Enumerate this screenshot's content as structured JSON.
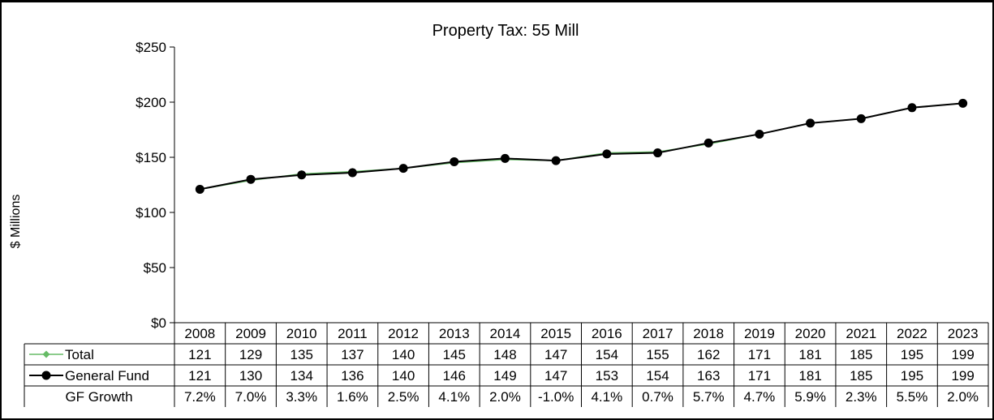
{
  "chart_data": {
    "type": "line",
    "title": "Property Tax: 55 Mill",
    "ylabel": "$ Millions",
    "xlabel": "",
    "ylim": [
      0,
      250
    ],
    "ytick_labels": [
      "$0",
      "$50",
      "$100",
      "$150",
      "$200",
      "$250"
    ],
    "ytick_values": [
      0,
      50,
      100,
      150,
      200,
      250
    ],
    "grid": false,
    "legend_placement": "data-table",
    "categories": [
      "2008",
      "2009",
      "2010",
      "2011",
      "2012",
      "2013",
      "2014",
      "2015",
      "2016",
      "2017",
      "2018",
      "2019",
      "2020",
      "2021",
      "2022",
      "2023"
    ],
    "series": [
      {
        "name": "Total",
        "color": "#66bb66",
        "marker": "diamond",
        "values": [
          121,
          129,
          135,
          137,
          140,
          145,
          148,
          147,
          154,
          155,
          162,
          171,
          181,
          185,
          195,
          199
        ]
      },
      {
        "name": "General Fund",
        "color": "#000000",
        "marker": "circle",
        "values": [
          121,
          130,
          134,
          136,
          140,
          146,
          149,
          147,
          153,
          154,
          163,
          171,
          181,
          185,
          195,
          199
        ]
      }
    ],
    "table_extra_row": {
      "name": "GF Growth",
      "values": [
        "7.2%",
        "7.0%",
        "3.3%",
        "1.6%",
        "2.5%",
        "4.1%",
        "2.0%",
        "-1.0%",
        "4.1%",
        "0.7%",
        "5.7%",
        "4.7%",
        "5.9%",
        "2.3%",
        "5.5%",
        "2.0%"
      ]
    }
  }
}
